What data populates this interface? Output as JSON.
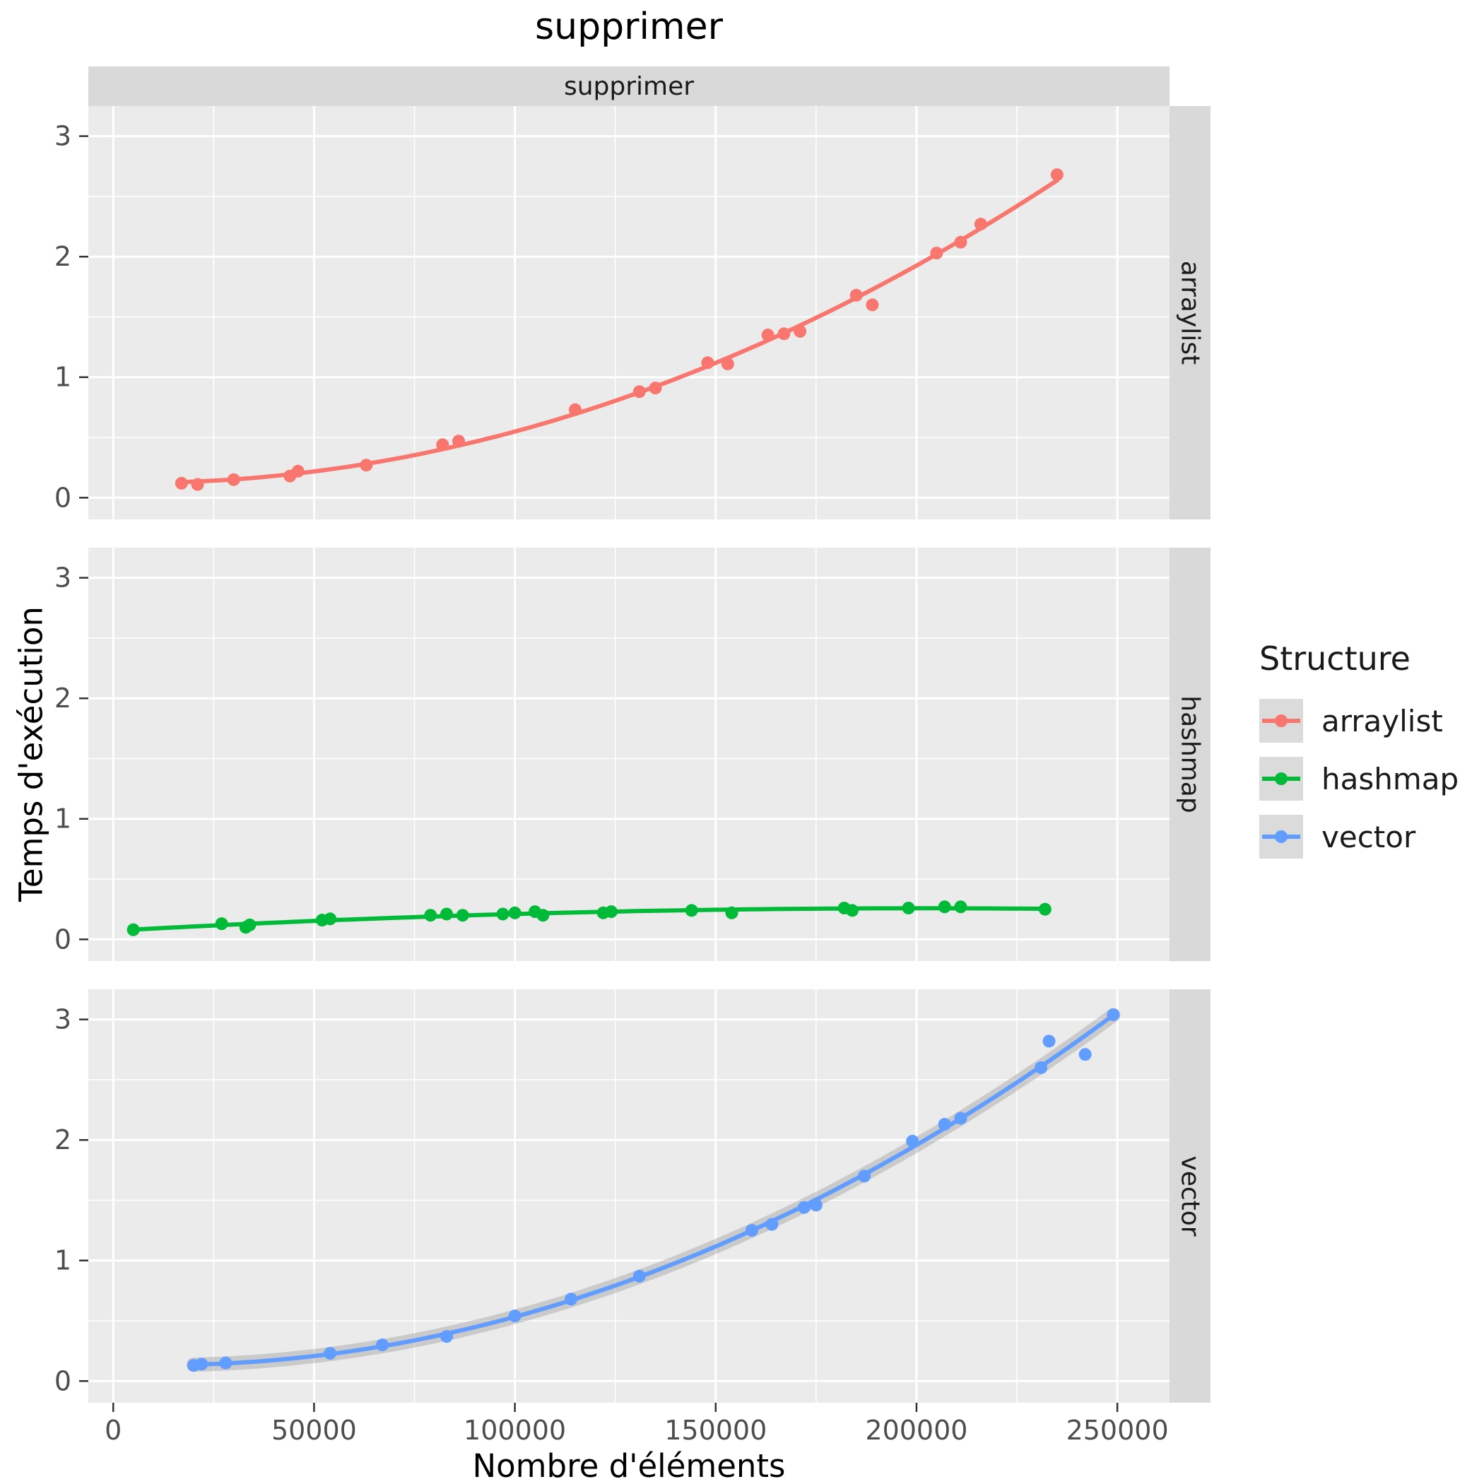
{
  "chart_data": {
    "type": "scatter",
    "title": "supprimer",
    "facet_label": "supprimer",
    "xlabel": "Nombre d'éléments",
    "ylabel": "Temps d'exécution",
    "legend_title": "Structure",
    "legend_position": "right",
    "grid": true,
    "smooth": "loess",
    "x_ticks": [
      0,
      50000,
      100000,
      150000,
      200000,
      250000
    ],
    "x_minor_ticks": [
      25000,
      75000,
      125000,
      175000,
      225000
    ],
    "y_ticks": [
      0,
      1,
      2,
      3
    ],
    "y_minor_ticks": [
      0.5,
      1.5,
      2.5
    ],
    "xlim": [
      -6200,
      263000
    ],
    "ylim": [
      -0.18,
      3.25
    ],
    "colors": {
      "panel_background": "#ebebeb",
      "strip_background": "#d9d9d9",
      "grid_line": "#ffffff",
      "tick_label": "#4d4d4d",
      "tick_mark": "#333333",
      "se_band": "#999999"
    },
    "facets": [
      {
        "name": "arraylist",
        "color": "#F8766D",
        "se_band": false,
        "points": [
          [
            17000,
            0.12
          ],
          [
            21000,
            0.11
          ],
          [
            30000,
            0.15
          ],
          [
            44000,
            0.18
          ],
          [
            46000,
            0.22
          ],
          [
            63000,
            0.27
          ],
          [
            82000,
            0.44
          ],
          [
            86000,
            0.47
          ],
          [
            115000,
            0.73
          ],
          [
            131000,
            0.88
          ],
          [
            135000,
            0.91
          ],
          [
            148000,
            1.12
          ],
          [
            153000,
            1.11
          ],
          [
            163000,
            1.35
          ],
          [
            167000,
            1.36
          ],
          [
            171000,
            1.38
          ],
          [
            185000,
            1.68
          ],
          [
            189000,
            1.6
          ],
          [
            205000,
            2.03
          ],
          [
            211000,
            2.12
          ],
          [
            216000,
            2.27
          ],
          [
            235000,
            2.68
          ]
        ]
      },
      {
        "name": "hashmap",
        "color": "#00BA38",
        "se_band": false,
        "points": [
          [
            5000,
            0.08
          ],
          [
            27000,
            0.13
          ],
          [
            33000,
            0.1
          ],
          [
            34000,
            0.12
          ],
          [
            52000,
            0.16
          ],
          [
            54000,
            0.17
          ],
          [
            79000,
            0.2
          ],
          [
            83000,
            0.21
          ],
          [
            87000,
            0.2
          ],
          [
            97000,
            0.21
          ],
          [
            100000,
            0.22
          ],
          [
            105000,
            0.23
          ],
          [
            107000,
            0.2
          ],
          [
            122000,
            0.22
          ],
          [
            124000,
            0.23
          ],
          [
            144000,
            0.24
          ],
          [
            154000,
            0.22
          ],
          [
            182000,
            0.26
          ],
          [
            184000,
            0.24
          ],
          [
            198000,
            0.26
          ],
          [
            207000,
            0.27
          ],
          [
            211000,
            0.27
          ],
          [
            232000,
            0.25
          ]
        ]
      },
      {
        "name": "vector",
        "color": "#619CFF",
        "se_band": true,
        "points": [
          [
            20000,
            0.13
          ],
          [
            22000,
            0.14
          ],
          [
            28000,
            0.15
          ],
          [
            54000,
            0.23
          ],
          [
            67000,
            0.3
          ],
          [
            83000,
            0.37
          ],
          [
            100000,
            0.54
          ],
          [
            114000,
            0.68
          ],
          [
            131000,
            0.87
          ],
          [
            159000,
            1.25
          ],
          [
            164000,
            1.3
          ],
          [
            172000,
            1.44
          ],
          [
            175000,
            1.46
          ],
          [
            187000,
            1.7
          ],
          [
            199000,
            1.99
          ],
          [
            207000,
            2.13
          ],
          [
            211000,
            2.18
          ],
          [
            231000,
            2.6
          ],
          [
            233000,
            2.82
          ],
          [
            242000,
            2.71
          ],
          [
            249000,
            3.04
          ]
        ]
      }
    ]
  }
}
